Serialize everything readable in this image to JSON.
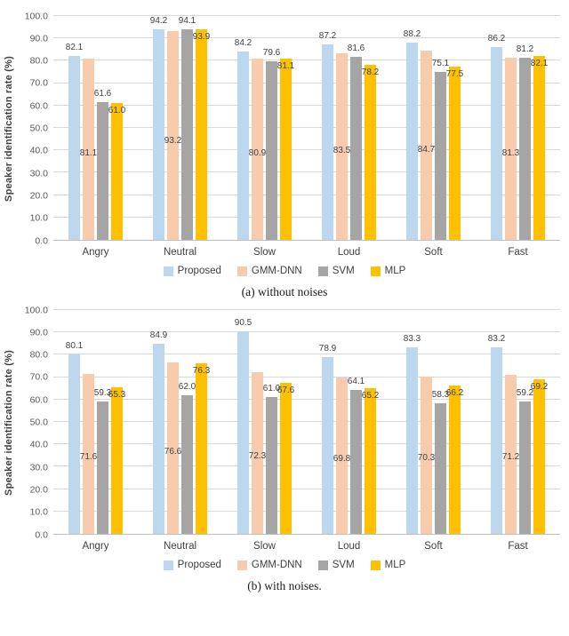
{
  "colors": {
    "series": [
      "#BDD7EE",
      "#F8CBAD",
      "#A5A5A5",
      "#FFC000"
    ],
    "gridline": "#D9D9D9",
    "axis_line": "#BFBFBF",
    "label_text": "#404040",
    "tick_text": "#595959"
  },
  "chart_data": [
    {
      "type": "bar",
      "caption": "(a) without noises",
      "ylabel": "Speaker identification rate  (%)",
      "ylim": [
        0,
        100
      ],
      "grid": true,
      "legend_position": "bottom",
      "yticks": [
        "100.0",
        "90.0",
        "80.0",
        "70.0",
        "60.0",
        "50.0",
        "40.0",
        "30.0",
        "20.0",
        "10.0",
        "0.0"
      ],
      "categories": [
        "Angry",
        "Neutral",
        "Slow",
        "Loud",
        "Soft",
        "Fast"
      ],
      "label_positions": [
        "above",
        "inside-mid",
        "above",
        "inside-top"
      ],
      "series": [
        {
          "name": "Proposed",
          "values": [
            82.1,
            94.2,
            84.2,
            87.2,
            88.2,
            86.2
          ]
        },
        {
          "name": "GMM-DNN",
          "values": [
            81.1,
            93.2,
            80.9,
            83.5,
            84.7,
            81.3
          ]
        },
        {
          "name": "SVM",
          "values": [
            61.6,
            94.1,
            79.6,
            81.6,
            75.1,
            81.2
          ]
        },
        {
          "name": "MLP",
          "values": [
            61.0,
            93.9,
            81.1,
            78.2,
            77.5,
            82.1
          ]
        }
      ]
    },
    {
      "type": "bar",
      "caption": "(b) with noises.",
      "ylabel": "Speaker identification rate  (%)",
      "ylim": [
        0,
        100
      ],
      "grid": true,
      "legend_position": "bottom",
      "yticks": [
        "100.0",
        "90.0",
        "80.0",
        "70.0",
        "60.0",
        "50.0",
        "40.0",
        "30.0",
        "20.0",
        "10.0",
        "0.0"
      ],
      "categories": [
        "Angry",
        "Neutral",
        "Slow",
        "Loud",
        "Soft",
        "Fast"
      ],
      "label_positions": [
        "above",
        "inside-mid",
        "above",
        "inside-top"
      ],
      "series": [
        {
          "name": "Proposed",
          "values": [
            80.1,
            84.9,
            90.5,
            78.9,
            83.3,
            83.2
          ]
        },
        {
          "name": "GMM-DNN",
          "values": [
            71.6,
            76.6,
            72.3,
            69.8,
            70.3,
            71.2
          ]
        },
        {
          "name": "SVM",
          "values": [
            59.3,
            62.0,
            61.0,
            64.1,
            58.3,
            59.2
          ]
        },
        {
          "name": "MLP",
          "values": [
            65.3,
            76.3,
            67.6,
            65.2,
            66.2,
            69.2
          ]
        }
      ]
    }
  ]
}
